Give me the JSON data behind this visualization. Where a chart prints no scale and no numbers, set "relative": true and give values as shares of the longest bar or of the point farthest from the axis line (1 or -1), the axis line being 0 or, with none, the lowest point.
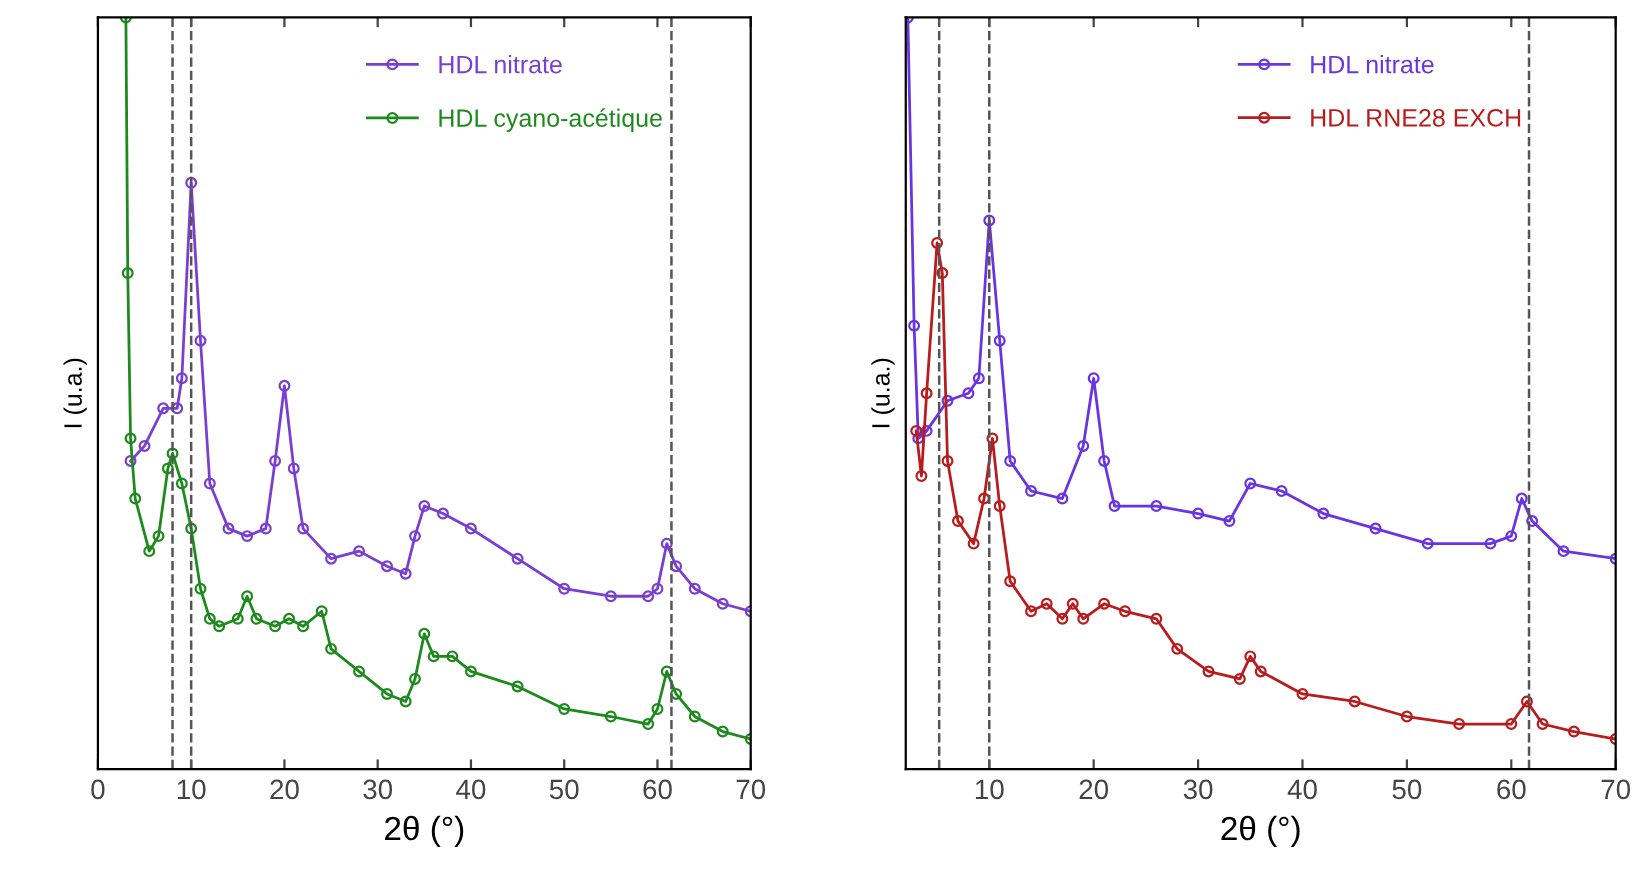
{
  "chart_data": [
    {
      "type": "line",
      "xlabel": "2θ (°)",
      "ylabel": "I (u.a.)",
      "relative": true,
      "xlim": [
        0,
        70
      ],
      "xticks": [
        0,
        10,
        20,
        30,
        40,
        50,
        60,
        70
      ],
      "tick_labels": "x",
      "marker": "circle",
      "legend": "top right",
      "grid": false,
      "series": [
        {
          "name": "HDL nitrate",
          "color": "#7a3fd0",
          "x": [
            3.5,
            5,
            7,
            8.5,
            9,
            10,
            11,
            12,
            14,
            16,
            18,
            19,
            20,
            21,
            22,
            25,
            28,
            31,
            33,
            34,
            35,
            37,
            40,
            45,
            50,
            55,
            59,
            60,
            61,
            62,
            64,
            67,
            70
          ],
          "values": [
            0.41,
            0.43,
            0.48,
            0.48,
            0.52,
            0.78,
            0.57,
            0.38,
            0.32,
            0.31,
            0.32,
            0.41,
            0.51,
            0.4,
            0.32,
            0.28,
            0.29,
            0.27,
            0.26,
            0.31,
            0.35,
            0.34,
            0.32,
            0.28,
            0.24,
            0.23,
            0.23,
            0.24,
            0.3,
            0.27,
            0.24,
            0.22,
            0.21
          ]
        },
        {
          "name": "HDL cyano-acétique",
          "color": "#1e8a1e",
          "x": [
            3,
            3.2,
            3.5,
            4,
            5.5,
            6.5,
            7.5,
            8,
            9,
            10,
            11,
            12,
            13,
            15,
            16,
            17,
            19,
            20.5,
            22,
            24,
            25,
            28,
            31,
            33,
            34,
            35,
            36,
            38,
            40,
            45,
            50,
            55,
            59,
            60,
            61,
            62,
            64,
            67,
            70
          ],
          "values": [
            1.0,
            0.66,
            0.44,
            0.36,
            0.29,
            0.31,
            0.4,
            0.42,
            0.38,
            0.32,
            0.24,
            0.2,
            0.19,
            0.2,
            0.23,
            0.2,
            0.19,
            0.2,
            0.19,
            0.21,
            0.16,
            0.13,
            0.1,
            0.09,
            0.12,
            0.18,
            0.15,
            0.15,
            0.13,
            0.11,
            0.08,
            0.07,
            0.06,
            0.08,
            0.13,
            0.1,
            0.07,
            0.05,
            0.04
          ]
        }
      ],
      "ref_lines": [
        {
          "axis": "x",
          "value": 8,
          "line_style": "dashed"
        },
        {
          "axis": "x",
          "value": 10,
          "line_style": "dashed"
        },
        {
          "axis": "x",
          "value": 61.5,
          "line_style": "dashed"
        }
      ]
    },
    {
      "type": "line",
      "xlabel": "2θ (°)",
      "ylabel": "I (u.a.)",
      "relative": true,
      "xlim": [
        2,
        70
      ],
      "xticks": [
        10,
        20,
        30,
        40,
        50,
        60,
        70
      ],
      "tick_labels": "x",
      "marker": "circle",
      "legend": "top right",
      "grid": false,
      "series": [
        {
          "name": "HDL nitrate",
          "color": "#6a35e0",
          "x": [
            2.2,
            2.8,
            3.2,
            4,
            6,
            8,
            9,
            10,
            11,
            12,
            14,
            17,
            19,
            20,
            21,
            22,
            26,
            30,
            33,
            35,
            38,
            42,
            47,
            52,
            58,
            60,
            61,
            62,
            65,
            70
          ],
          "values": [
            1.0,
            0.59,
            0.44,
            0.45,
            0.49,
            0.5,
            0.52,
            0.73,
            0.57,
            0.41,
            0.37,
            0.36,
            0.43,
            0.52,
            0.41,
            0.35,
            0.35,
            0.34,
            0.33,
            0.38,
            0.37,
            0.34,
            0.32,
            0.3,
            0.3,
            0.31,
            0.36,
            0.33,
            0.29,
            0.28
          ]
        },
        {
          "name": "HDL RNE28 EXCH",
          "color": "#b81c1c",
          "x": [
            3,
            3.5,
            4,
            5,
            5.5,
            6,
            7,
            8.5,
            9.5,
            10.3,
            11,
            12,
            14,
            15.5,
            17,
            18,
            19,
            21,
            23,
            26,
            28,
            31,
            34,
            35,
            36,
            40,
            45,
            50,
            55,
            60,
            61.5,
            63,
            66,
            70
          ],
          "values": [
            0.45,
            0.39,
            0.5,
            0.7,
            0.66,
            0.41,
            0.33,
            0.3,
            0.36,
            0.44,
            0.35,
            0.25,
            0.21,
            0.22,
            0.2,
            0.22,
            0.2,
            0.22,
            0.21,
            0.2,
            0.16,
            0.13,
            0.12,
            0.15,
            0.13,
            0.1,
            0.09,
            0.07,
            0.06,
            0.06,
            0.09,
            0.06,
            0.05,
            0.04
          ]
        }
      ],
      "ref_lines": [
        {
          "axis": "x",
          "value": 5.2,
          "line_style": "dashed"
        },
        {
          "axis": "x",
          "value": 10,
          "line_style": "dashed"
        },
        {
          "axis": "x",
          "value": 61.7,
          "line_style": "dashed"
        }
      ]
    }
  ]
}
